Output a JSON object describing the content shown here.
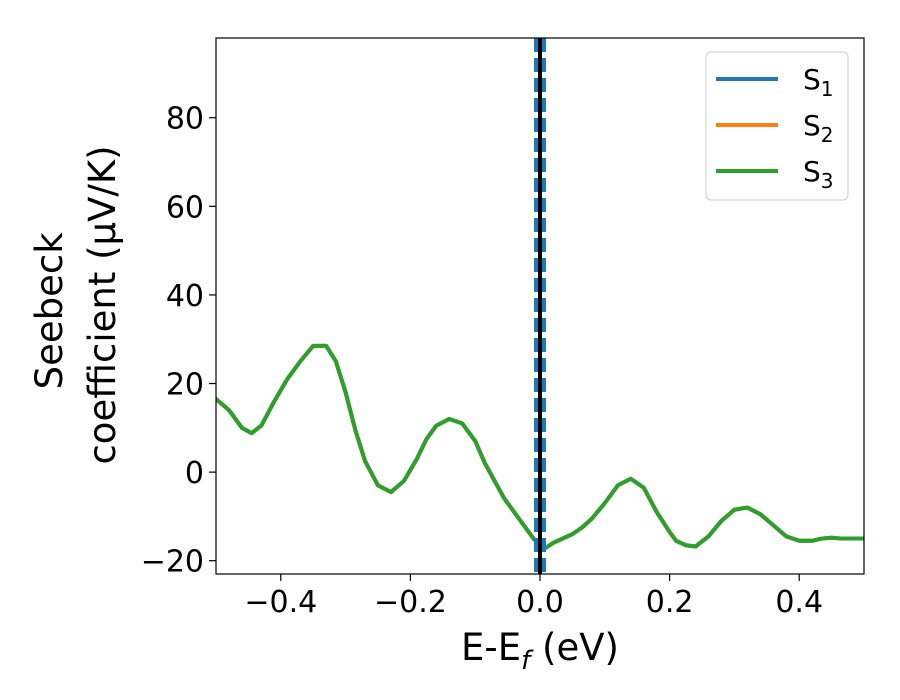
{
  "chart_data": {
    "type": "line",
    "title": "",
    "xlabel": {
      "main": "E-E",
      "sub": "f",
      "tail": " (eV)"
    },
    "ylabel": {
      "line1": "Seebeck",
      "line2": "coefficient  (μV/K)"
    },
    "xlim": [
      -0.5,
      0.5
    ],
    "ylim": [
      -23,
      98
    ],
    "grid": false,
    "legend_position": "top-right",
    "x_ticks": [
      -0.4,
      -0.2,
      0.0,
      0.2,
      0.4
    ],
    "x_tick_labels": [
      "−0.4",
      "−0.2",
      "0.0",
      "0.2",
      "0.4"
    ],
    "y_ticks": [
      -20,
      0,
      20,
      40,
      60,
      80
    ],
    "y_tick_labels": [
      "−20",
      "0",
      "20",
      "40",
      "60",
      "80"
    ],
    "vlines": [
      {
        "x": 0.0,
        "color": "#000000",
        "style": "solid"
      },
      {
        "x": 0.0,
        "color": "#1f77b4",
        "style": "dashed"
      }
    ],
    "x": [
      -0.5,
      -0.48,
      -0.46,
      -0.445,
      -0.43,
      -0.41,
      -0.39,
      -0.37,
      -0.35,
      -0.33,
      -0.315,
      -0.3,
      -0.285,
      -0.27,
      -0.25,
      -0.23,
      -0.21,
      -0.19,
      -0.175,
      -0.16,
      -0.14,
      -0.12,
      -0.1,
      -0.085,
      -0.07,
      -0.055,
      -0.04,
      -0.025,
      -0.01,
      0.0,
      0.01,
      0.02,
      0.035,
      0.05,
      0.065,
      0.08,
      0.1,
      0.12,
      0.14,
      0.16,
      0.18,
      0.2,
      0.21,
      0.225,
      0.24,
      0.26,
      0.28,
      0.3,
      0.32,
      0.34,
      0.36,
      0.38,
      0.4,
      0.42,
      0.435,
      0.45,
      0.465,
      0.48,
      0.5
    ],
    "series": [
      {
        "name": "S_1",
        "label_main": "S",
        "label_sub": "1",
        "color": "#1f77b4",
        "values": [
          16.5,
          14.0,
          10.0,
          8.8,
          10.5,
          16.0,
          21.0,
          25.0,
          28.5,
          28.5,
          25.0,
          18.0,
          9.5,
          2.5,
          -3.0,
          -4.5,
          -2.0,
          3.0,
          7.5,
          10.5,
          12.0,
          11.0,
          7.0,
          2.0,
          -2.0,
          -6.0,
          -9.0,
          -12.0,
          -15.0,
          -16.5,
          -17.0,
          -16.0,
          -15.0,
          -14.0,
          -12.5,
          -10.5,
          -7.0,
          -3.0,
          -1.5,
          -3.5,
          -9.0,
          -13.5,
          -15.5,
          -16.5,
          -16.8,
          -14.5,
          -11.0,
          -8.5,
          -8.0,
          -9.5,
          -12.0,
          -14.5,
          -15.5,
          -15.5,
          -15.0,
          -14.8,
          -15.0,
          -15.0,
          -15.0
        ]
      },
      {
        "name": "S_2",
        "label_main": "S",
        "label_sub": "2",
        "color": "#ff7f0e",
        "values": [
          16.5,
          14.0,
          10.0,
          8.8,
          10.5,
          16.0,
          21.0,
          25.0,
          28.5,
          28.5,
          25.0,
          18.0,
          9.5,
          2.5,
          -3.0,
          -4.5,
          -2.0,
          3.0,
          7.5,
          10.5,
          12.0,
          11.0,
          7.0,
          2.0,
          -2.0,
          -6.0,
          -9.0,
          -12.0,
          -15.0,
          -16.5,
          -17.0,
          -16.0,
          -15.0,
          -14.0,
          -12.5,
          -10.5,
          -7.0,
          -3.0,
          -1.5,
          -3.5,
          -9.0,
          -13.5,
          -15.5,
          -16.5,
          -16.8,
          -14.5,
          -11.0,
          -8.5,
          -8.0,
          -9.5,
          -12.0,
          -14.5,
          -15.5,
          -15.5,
          -15.0,
          -14.8,
          -15.0,
          -15.0,
          -15.0
        ]
      },
      {
        "name": "S_3",
        "label_main": "S",
        "label_sub": "3",
        "color": "#2ca02c",
        "values": [
          16.5,
          14.0,
          10.0,
          8.8,
          10.5,
          16.0,
          21.0,
          25.0,
          28.5,
          28.5,
          25.0,
          18.0,
          9.5,
          2.5,
          -3.0,
          -4.5,
          -2.0,
          3.0,
          7.5,
          10.5,
          12.0,
          11.0,
          7.0,
          2.0,
          -2.0,
          -6.0,
          -9.0,
          -12.0,
          -15.0,
          -16.5,
          -17.0,
          -16.0,
          -15.0,
          -14.0,
          -12.5,
          -10.5,
          -7.0,
          -3.0,
          -1.5,
          -3.5,
          -9.0,
          -13.5,
          -15.5,
          -16.5,
          -16.8,
          -14.5,
          -11.0,
          -8.5,
          -8.0,
          -9.5,
          -12.0,
          -14.5,
          -15.5,
          -15.5,
          -15.0,
          -14.8,
          -15.0,
          -15.0,
          -15.0
        ]
      }
    ]
  }
}
